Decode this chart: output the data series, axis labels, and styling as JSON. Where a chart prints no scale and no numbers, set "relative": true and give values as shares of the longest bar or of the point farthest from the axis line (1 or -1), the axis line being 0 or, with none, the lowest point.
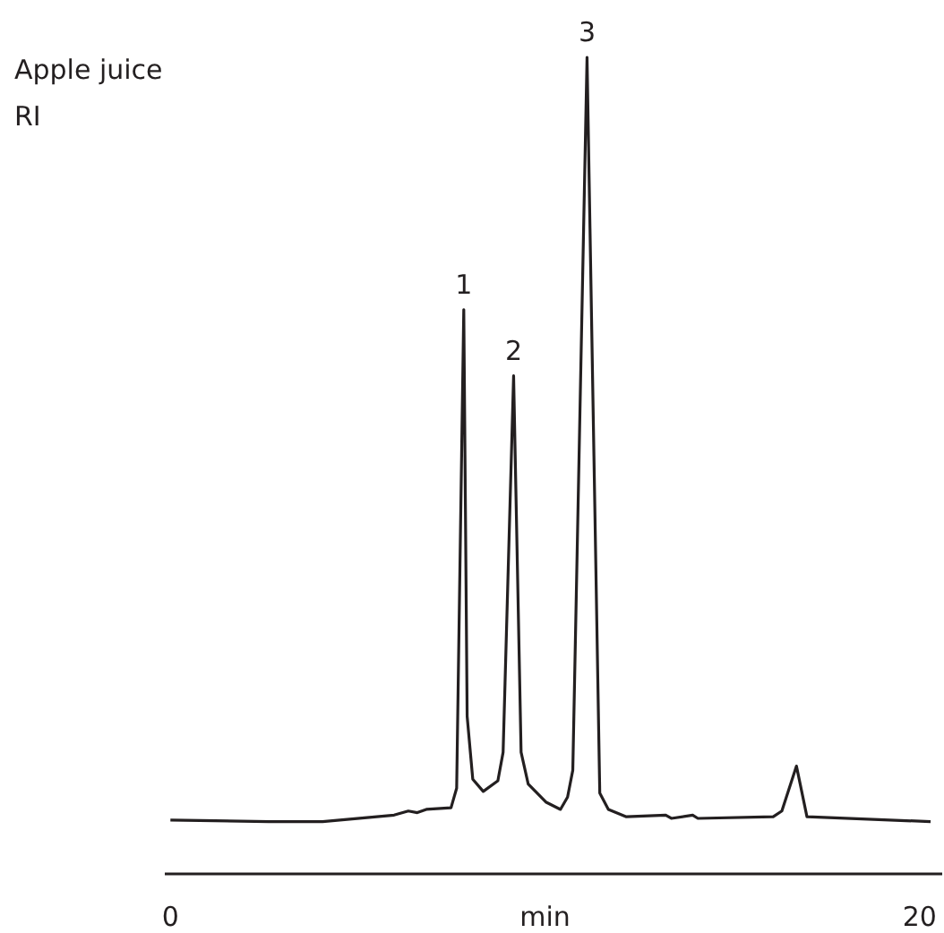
{
  "chart_data": {
    "type": "line",
    "title": "Apple juice",
    "ylabel": "RI",
    "xlabel": "min",
    "relative": true,
    "xlim": [
      -0.15,
      20.6
    ],
    "xticks": [
      0,
      20
    ],
    "grid": false,
    "line_style": "solid",
    "x": [
      0,
      2.63,
      4.06,
      5.97,
      6.35,
      6.59,
      6.83,
      7.49,
      7.64,
      7.83,
      7.92,
      8.07,
      8.35,
      8.74,
      8.88,
      9.16,
      9.36,
      9.55,
      10.02,
      10.41,
      10.6,
      10.74,
      11.12,
      11.46,
      11.69,
      12.17,
      13.22,
      13.37,
      13.94,
      14.08,
      16.09,
      16.32,
      16.71,
      16.99,
      20.29
    ],
    "series": [
      {
        "color": "#231f20",
        "values": [
          0.066,
          0.064,
          0.064,
          0.072,
          0.077,
          0.075,
          0.079,
          0.081,
          0.105,
          0.691,
          0.193,
          0.116,
          0.101,
          0.114,
          0.149,
          0.61,
          0.149,
          0.11,
          0.088,
          0.079,
          0.094,
          0.127,
          1,
          0.099,
          0.079,
          0.07,
          0.072,
          0.068,
          0.072,
          0.068,
          0.07,
          0.077,
          0.132,
          0.07,
          0.064
        ]
      }
    ],
    "annotations": [
      {
        "text": "1",
        "x": 7.83,
        "y": 0.691
      },
      {
        "text": "2",
        "x": 9.16,
        "y": 0.61
      },
      {
        "text": "3",
        "x": 11.12,
        "y": 1
      }
    ]
  }
}
